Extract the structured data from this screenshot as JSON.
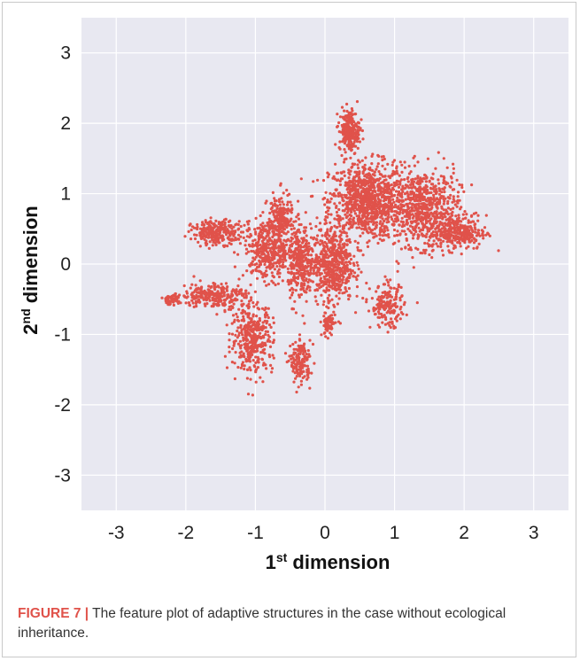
{
  "figure": {
    "caption_label": "FIGURE 7 |",
    "caption_text": " The feature plot of adaptive structures in the case without ecological inheritance."
  },
  "chart_data": {
    "type": "scatter",
    "title": "",
    "xlabel_main": "1",
    "xlabel_sup": "st",
    "xlabel_rest": " dimension",
    "ylabel_main": "2",
    "ylabel_sup": "nd",
    "ylabel_rest": " dimension",
    "xlim": [
      -3.5,
      3.5
    ],
    "ylim": [
      -3.5,
      3.5
    ],
    "xticks": [
      "-3",
      "-2",
      "-1",
      "0",
      "1",
      "2",
      "3"
    ],
    "yticks": [
      "3",
      "2",
      "1",
      "0",
      "-1",
      "-2",
      "-3"
    ],
    "xtick_values": [
      -3,
      -2,
      -1,
      0,
      1,
      2,
      3
    ],
    "ytick_values": [
      3,
      2,
      1,
      0,
      -1,
      -2,
      -3
    ],
    "grid": true,
    "background": "#e8e8f1",
    "point_color": "#e0524a",
    "clusters": [
      {
        "center": [
          0.6,
          0.9
        ],
        "spread": [
          0.45,
          0.45
        ],
        "count": 900
      },
      {
        "center": [
          1.4,
          0.8
        ],
        "spread": [
          0.45,
          0.45
        ],
        "count": 650
      },
      {
        "center": [
          1.9,
          0.45
        ],
        "spread": [
          0.35,
          0.2
        ],
        "count": 300
      },
      {
        "center": [
          0.35,
          1.9
        ],
        "spread": [
          0.12,
          0.25
        ],
        "count": 220
      },
      {
        "center": [
          0.1,
          0.0
        ],
        "spread": [
          0.25,
          0.45
        ],
        "count": 550
      },
      {
        "center": [
          -0.35,
          0.0
        ],
        "spread": [
          0.15,
          0.45
        ],
        "count": 300
      },
      {
        "center": [
          -0.8,
          0.2
        ],
        "spread": [
          0.3,
          0.35
        ],
        "count": 420
      },
      {
        "center": [
          -0.65,
          0.65
        ],
        "spread": [
          0.15,
          0.3
        ],
        "count": 180
      },
      {
        "center": [
          -1.55,
          0.45
        ],
        "spread": [
          0.3,
          0.14
        ],
        "count": 260
      },
      {
        "center": [
          -1.6,
          -0.45
        ],
        "spread": [
          0.38,
          0.15
        ],
        "count": 260
      },
      {
        "center": [
          -2.2,
          -0.5
        ],
        "spread": [
          0.12,
          0.06
        ],
        "count": 60
      },
      {
        "center": [
          -1.05,
          -1.05
        ],
        "spread": [
          0.25,
          0.4
        ],
        "count": 380
      },
      {
        "center": [
          -0.35,
          -1.4
        ],
        "spread": [
          0.12,
          0.25
        ],
        "count": 160
      },
      {
        "center": [
          0.9,
          -0.6
        ],
        "spread": [
          0.2,
          0.25
        ],
        "count": 180
      },
      {
        "center": [
          0.05,
          -0.85
        ],
        "spread": [
          0.08,
          0.15
        ],
        "count": 80
      }
    ]
  }
}
